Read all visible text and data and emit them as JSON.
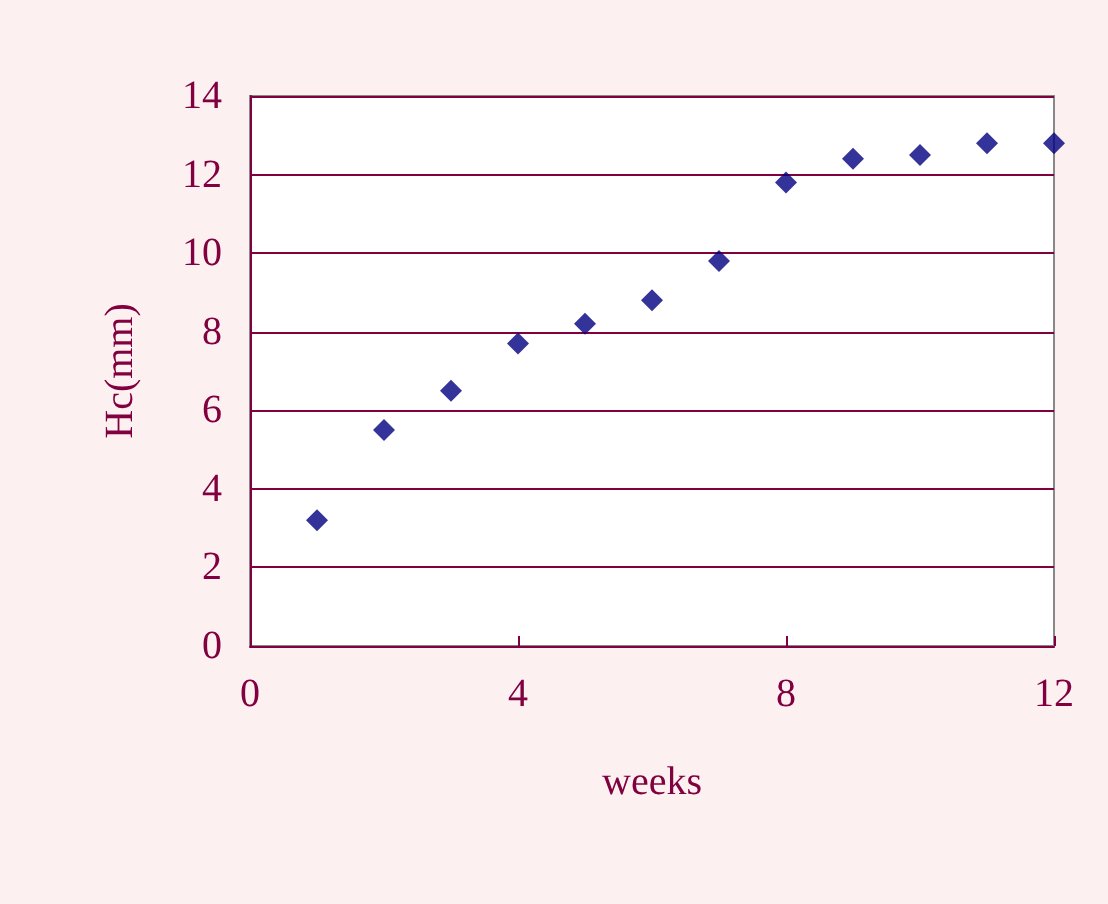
{
  "chart_data": {
    "type": "scatter",
    "xlabel": "weeks",
    "ylabel": "Hc(mm)",
    "x": [
      1,
      2,
      3,
      4,
      5,
      6,
      7,
      8,
      9,
      10,
      11,
      12
    ],
    "series": [
      {
        "color": "#000080",
        "values": [
          3.2,
          5.5,
          6.5,
          7.7,
          8.2,
          8.8,
          9.8,
          11.8,
          12.4,
          12.5,
          12.8,
          12.8
        ]
      }
    ],
    "xlim": [
      0,
      12
    ],
    "xticks": [
      0,
      4,
      8,
      12
    ],
    "ylim": [
      0,
      14
    ],
    "yticks": [
      0,
      2,
      4,
      6,
      8,
      10,
      12,
      14
    ],
    "grid": "y",
    "marker": "diamond"
  }
}
